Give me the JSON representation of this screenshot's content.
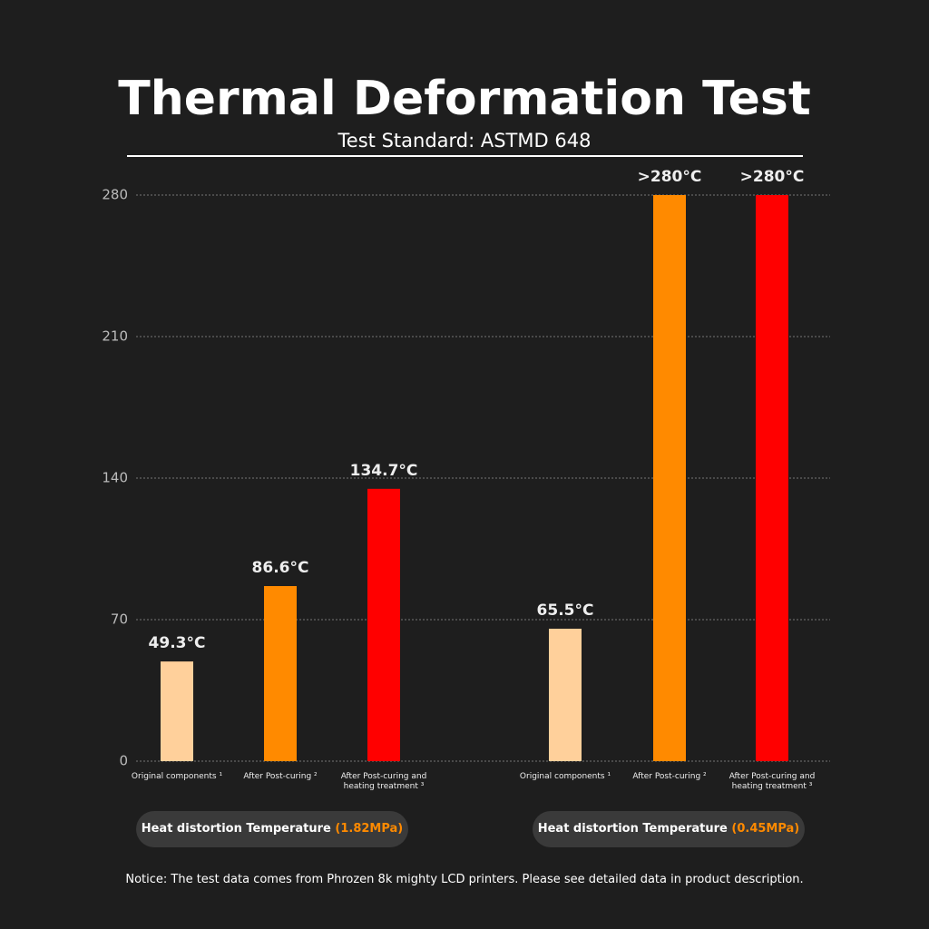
{
  "chart_data": {
    "type": "bar",
    "title": "Thermal Deformation Test",
    "subtitle": "Test Standard: ASTMD 648",
    "categories": [
      "Original components ¹",
      "After Post-curing ²",
      "After Post-curing and heating treatment ³",
      "Original components ¹",
      "After Post-curing ²",
      "After Post-curing and heating treatment ³"
    ],
    "values": [
      49.3,
      86.6,
      134.7,
      65.5,
      280,
      280
    ],
    "value_labels": [
      "49.3°C",
      "86.6°C",
      "134.7°C",
      "65.5°C",
      ">280°C",
      ">280°C"
    ],
    "colors": [
      "#ffd09b",
      "#ff8a00",
      "#ff0000",
      "#ffd09b",
      "#ff8a00",
      "#ff0000"
    ],
    "groups": [
      {
        "label": "Heat distortion Temperature",
        "highlight": "(1.82MPa)"
      },
      {
        "label": "Heat distortion Temperature",
        "highlight": "(0.45MPa)"
      }
    ],
    "highlight_color": "#ff8a00",
    "ylim": [
      0,
      280
    ],
    "yticks": [
      0,
      70,
      140,
      210,
      280
    ],
    "grid": true,
    "notice": "Notice: The test data comes from  Phrozen 8k mighty LCD printers. Please see detailed data in product description."
  }
}
